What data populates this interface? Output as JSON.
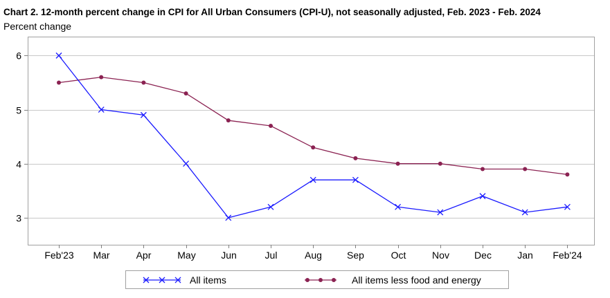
{
  "chart_data": {
    "type": "line",
    "title": "Chart 2. 12-month percent change in CPI for All Urban Consumers (CPI-U), not seasonally adjusted, Feb. 2023 - Feb. 2024",
    "ylabel": "Percent change",
    "xlabel": "",
    "categories": [
      "Feb'23",
      "Mar",
      "Apr",
      "May",
      "Jun",
      "Jul",
      "Aug",
      "Sep",
      "Oct",
      "Nov",
      "Dec",
      "Jan",
      "Feb'24"
    ],
    "ylim": [
      2.5,
      6.35
    ],
    "yticks": [
      3,
      4,
      5,
      6
    ],
    "grid": true,
    "legend_position": "bottom",
    "series": [
      {
        "name": "All items",
        "color": "#1a1aff",
        "marker": "x",
        "values": [
          6.0,
          5.0,
          4.9,
          4.0,
          3.0,
          3.2,
          3.7,
          3.7,
          3.2,
          3.1,
          3.4,
          3.1,
          3.2
        ]
      },
      {
        "name": "All items less food and energy",
        "color": "#8b2252",
        "marker": "circle",
        "values": [
          5.5,
          5.6,
          5.5,
          5.3,
          4.8,
          4.7,
          4.3,
          4.1,
          4.0,
          4.0,
          3.9,
          3.9,
          3.8
        ]
      }
    ]
  }
}
